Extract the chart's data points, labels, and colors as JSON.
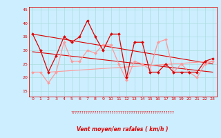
{
  "xlabel": "Vent moyen/en rafales ( km/h )",
  "xlim": [
    -0.5,
    23.5
  ],
  "ylim": [
    13,
    46
  ],
  "yticks": [
    15,
    20,
    25,
    30,
    35,
    40,
    45
  ],
  "xticks": [
    0,
    1,
    2,
    3,
    4,
    5,
    6,
    7,
    8,
    9,
    10,
    11,
    12,
    13,
    14,
    15,
    16,
    17,
    18,
    19,
    20,
    21,
    22,
    23
  ],
  "bg_color": "#cceeff",
  "grid_color": "#aadddd",
  "line_color_dark": "#dd0000",
  "line_color_light": "#ff9999",
  "avg_wind": [
    36,
    30,
    22,
    28,
    35,
    33,
    35,
    41,
    35,
    30,
    36,
    36,
    20,
    33,
    33,
    22,
    22,
    25,
    22,
    22,
    22,
    22,
    26,
    27
  ],
  "gust_wind": [
    22,
    22,
    18,
    22,
    33,
    26,
    26,
    30,
    29,
    32,
    32,
    25,
    19,
    26,
    25,
    23,
    33,
    34,
    22,
    25,
    22,
    20,
    25,
    26
  ],
  "trend1_x": [
    0,
    23
  ],
  "trend1_y": [
    36,
    25
  ],
  "trend2_x": [
    0,
    23
  ],
  "trend2_y": [
    29.5,
    22
  ],
  "trend3_x": [
    2,
    23
  ],
  "trend3_y": [
    22,
    26
  ],
  "arrows_text": "????????????????????????????????????????????????????????????????????????????????????????????????????"
}
